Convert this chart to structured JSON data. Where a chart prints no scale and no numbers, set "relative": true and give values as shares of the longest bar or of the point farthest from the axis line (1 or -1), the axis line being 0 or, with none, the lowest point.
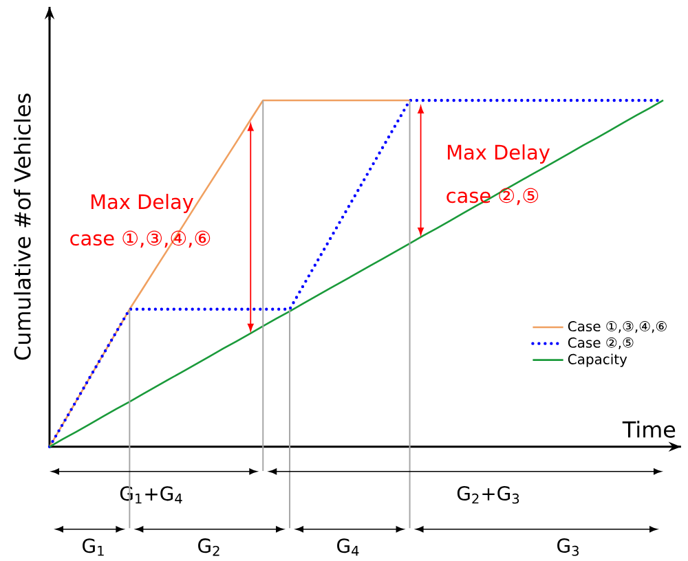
{
  "chart_data": {
    "type": "line",
    "relative": true,
    "xlabel": "Time",
    "ylabel": "Cumulative #of Vehicles",
    "categories": [
      null,
      null,
      null,
      null,
      null,
      null,
      null,
      null,
      null,
      null,
      null,
      null,
      null,
      null,
      null,
      null,
      null,
      null,
      null,
      null,
      null,
      null,
      null,
      null,
      null,
      null,
      null,
      null,
      null,
      null,
      null,
      null,
      null,
      null,
      null,
      null,
      null,
      null,
      null,
      null,
      null,
      null,
      null,
      null,
      null,
      null,
      null
    ],
    "series": [
      {
        "name": "Case ①,③,④,⑥",
        "color": "#f0a060",
        "line_style": "solid",
        "values": [
          0,
          0.066,
          0.132,
          0.199,
          0.265,
          0.331,
          0.397,
          0.457,
          0.518,
          0.578,
          0.638,
          0.699,
          0.759,
          0.819,
          0.879,
          0.94,
          1,
          1,
          1,
          1,
          1,
          1,
          1,
          1,
          1,
          1,
          1,
          1,
          null,
          null,
          null,
          null,
          null,
          null,
          null,
          null,
          null,
          null,
          null,
          null,
          null,
          null,
          null,
          null,
          null,
          null,
          null
        ]
      },
      {
        "name": "Case ②,⑤",
        "color": "#0000ff",
        "line_style": "dotted",
        "values": [
          0,
          0.066,
          0.132,
          0.199,
          0.265,
          0.331,
          0.397,
          0.397,
          0.397,
          0.397,
          0.397,
          0.397,
          0.397,
          0.397,
          0.397,
          0.397,
          0.397,
          0.397,
          0.397,
          0.464,
          0.531,
          0.598,
          0.665,
          0.732,
          0.799,
          0.866,
          0.933,
          1,
          1,
          1,
          1,
          1,
          1,
          1,
          1,
          1,
          1,
          1,
          1,
          1,
          1,
          1,
          1,
          1,
          1,
          1,
          1
        ]
      },
      {
        "name": "Capacity",
        "color": "#1a9a3a",
        "line_style": "solid",
        "values": [
          0,
          0.022,
          0.043,
          0.065,
          0.087,
          0.109,
          0.13,
          0.152,
          0.174,
          0.196,
          0.217,
          0.239,
          0.261,
          0.283,
          0.304,
          0.326,
          0.348,
          0.37,
          0.391,
          0.413,
          0.435,
          0.457,
          0.478,
          0.5,
          0.522,
          0.543,
          0.565,
          0.587,
          0.609,
          0.63,
          0.652,
          0.674,
          0.696,
          0.717,
          0.739,
          0.761,
          0.783,
          0.804,
          0.826,
          0.848,
          0.87,
          0.891,
          0.913,
          0.935,
          0.957,
          0.978,
          1
        ]
      }
    ],
    "annotations": [
      "Max Delay",
      "case ①,③,④,⑥",
      "Max Delay",
      "case ②,⑤",
      "G$_{1}$+G$_{4}$",
      "G$_{2}$+G$_{3}$",
      "G$_{1}$",
      "G$_{2}$",
      "G$_{4}$",
      "G$_{3}$"
    ],
    "legend": "bottom right",
    "marker": "none"
  }
}
